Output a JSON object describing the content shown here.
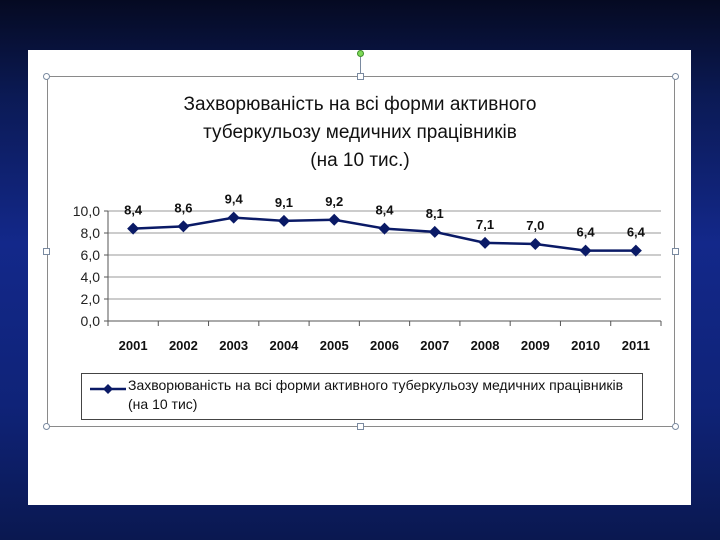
{
  "chart_data": {
    "type": "line",
    "title_lines": [
      "Захворюваність на всі форми активного",
      "туберкульозу медичних працівників",
      "(на 10 тис.)"
    ],
    "categories": [
      "2001",
      "2002",
      "2003",
      "2004",
      "2005",
      "2006",
      "2007",
      "2008",
      "2009",
      "2010",
      "2011"
    ],
    "series": [
      {
        "name": "Захворюваність на всі форми активного туберкульозу медичних працівників (на 10 тис)",
        "values": [
          8.4,
          8.6,
          9.4,
          9.1,
          9.2,
          8.4,
          8.1,
          7.1,
          7.0,
          6.4,
          6.4
        ],
        "value_labels": [
          "8,4",
          "8,6",
          "9,4",
          "9,1",
          "9,2",
          "8,4",
          "8,1",
          "7,1",
          "7,0",
          "6,4",
          "6,4"
        ],
        "color": "#0a1a66"
      }
    ],
    "ylim": [
      0,
      10
    ],
    "yticks": [
      "0,0",
      "2,0",
      "4,0",
      "6,0",
      "8,0",
      "10,0"
    ],
    "legend_position": "bottom",
    "grid": true,
    "xlabel": "",
    "ylabel": ""
  }
}
